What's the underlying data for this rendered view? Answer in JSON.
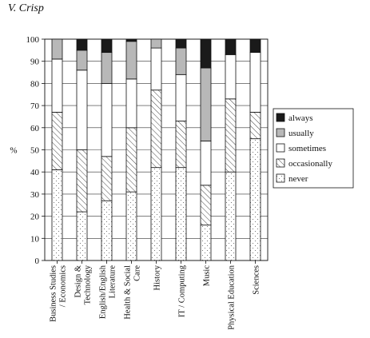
{
  "page": {
    "header": "V. Crisp"
  },
  "chart_data": {
    "type": "bar",
    "stacked": true,
    "ylabel": "%",
    "ylim": [
      0,
      100
    ],
    "yticks": [
      0,
      10,
      20,
      30,
      40,
      50,
      60,
      70,
      80,
      90,
      100
    ],
    "grid": true,
    "legend_position": "right",
    "categories": [
      [
        "Business Studies",
        "/ Economics"
      ],
      [
        "Design &",
        "Technology"
      ],
      [
        "English/English",
        "Literature"
      ],
      [
        "Health & Social",
        "Care"
      ],
      [
        "History"
      ],
      [
        "IT / Computing"
      ],
      [
        "Music"
      ],
      [
        "Physical Education"
      ],
      [
        "Sciences"
      ]
    ],
    "series": [
      {
        "name": "never",
        "pattern": "dots",
        "values": [
          41,
          22,
          27,
          31,
          42,
          42,
          16,
          40,
          55
        ]
      },
      {
        "name": "occasionally",
        "pattern": "hatch",
        "values": [
          26,
          28,
          20,
          29,
          35,
          21,
          18,
          33,
          12
        ]
      },
      {
        "name": "sometimes",
        "pattern": "white",
        "values": [
          24,
          36,
          33,
          22,
          19,
          21,
          20,
          20,
          27
        ]
      },
      {
        "name": "usually",
        "pattern": "grey",
        "color": "#b8b8b8",
        "values": [
          9,
          9,
          14,
          17,
          4,
          12,
          33,
          0,
          0
        ]
      },
      {
        "name": "always",
        "pattern": "black",
        "color": "#1a1a1a",
        "values": [
          0,
          5,
          6,
          1,
          0,
          4,
          13,
          7,
          6
        ]
      }
    ]
  }
}
